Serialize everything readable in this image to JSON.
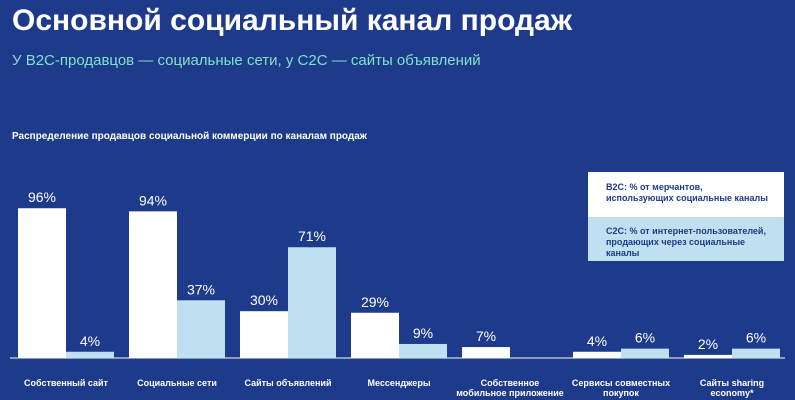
{
  "header": {
    "title": "Основной социальный канал продаж",
    "subtitle": "У B2C-продавцов — социальные сети, у C2C — сайты объявлений",
    "chart_heading": "Распределение продавцов социальной коммерции по каналам продаж"
  },
  "legend": {
    "b2c": "B2C: % от мерчантов, использующих социальные каналы",
    "c2c": "C2C: % от интернет-пользователей, продающих через социальные каналы"
  },
  "colors": {
    "background": "#1e3a8a",
    "b2c": "#ffffff",
    "c2c": "#bfe0f0",
    "subtitle": "#7ee3c9"
  },
  "chart_data": {
    "type": "bar",
    "categories": [
      [
        "Собственный сайт"
      ],
      [
        "Социальные сети"
      ],
      [
        "Сайты объявлений"
      ],
      [
        "Мессенджеры"
      ],
      [
        "Собственное",
        "мобильное приложение"
      ],
      [
        "Сервисы совместных",
        "покупок"
      ],
      [
        "Сайты sharing",
        "economy*"
      ]
    ],
    "series": [
      {
        "name": "B2C: % от мерчантов, использующих социальные каналы",
        "values": [
          96,
          94,
          30,
          29,
          7,
          4,
          2
        ],
        "labels": [
          "96%",
          "94%",
          "30%",
          "29%",
          "7%",
          "4%",
          "2%"
        ]
      },
      {
        "name": "C2C: % от интернет-пользователей, продающих через социальные каналы",
        "values": [
          4,
          37,
          71,
          9,
          null,
          6,
          6
        ],
        "labels": [
          "4%",
          "37%",
          "71%",
          "9%",
          "",
          "6%",
          "6%"
        ]
      }
    ],
    "ylim": [
      0,
      100
    ],
    "grid": false,
    "legend_position": "top-right"
  }
}
